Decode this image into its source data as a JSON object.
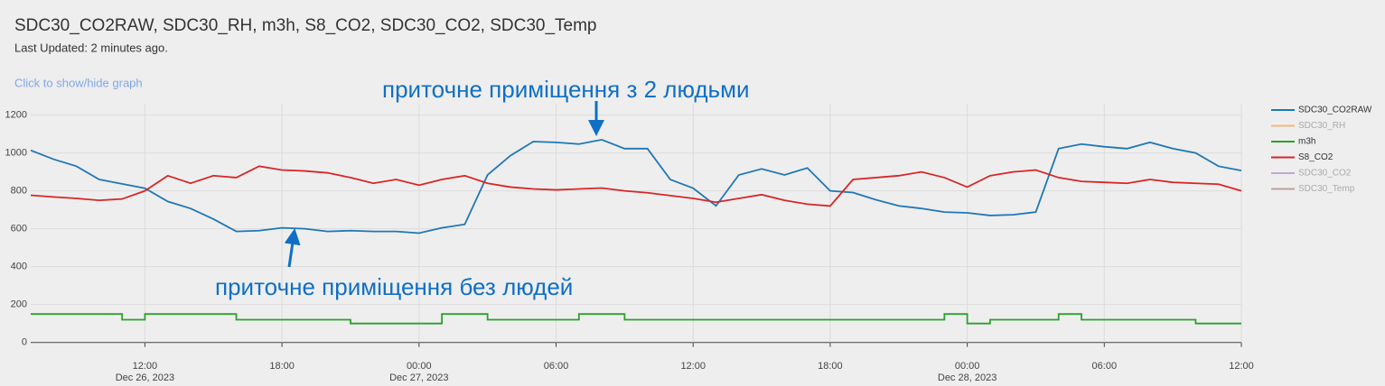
{
  "header": {
    "title": "SDC30_CO2RAW, SDC30_RH, m3h, S8_CO2, SDC30_CO2, SDC30_Temp",
    "updated": "Last Updated: 2 minutes ago.",
    "toggle": "Click to show/hide graph"
  },
  "chart_data": {
    "type": "line",
    "annotations": [
      "приточне приміщення з 2 людьми",
      "приточне приміщення без людей"
    ],
    "x": [
      "2023-12-26 07:00",
      "2023-12-26 08:00",
      "2023-12-26 09:00",
      "2023-12-26 10:00",
      "2023-12-26 11:00",
      "2023-12-26 12:00",
      "2023-12-26 13:00",
      "2023-12-26 14:00",
      "2023-12-26 15:00",
      "2023-12-26 16:00",
      "2023-12-26 17:00",
      "2023-12-26 18:00",
      "2023-12-26 19:00",
      "2023-12-26 20:00",
      "2023-12-26 21:00",
      "2023-12-26 22:00",
      "2023-12-26 23:00",
      "2023-12-27 00:00",
      "2023-12-27 01:00",
      "2023-12-27 02:00",
      "2023-12-27 03:00",
      "2023-12-27 04:00",
      "2023-12-27 05:00",
      "2023-12-27 06:00",
      "2023-12-27 07:00",
      "2023-12-27 08:00",
      "2023-12-27 09:00",
      "2023-12-27 10:00",
      "2023-12-27 11:00",
      "2023-12-27 12:00",
      "2023-12-27 13:00",
      "2023-12-27 14:00",
      "2023-12-27 15:00",
      "2023-12-27 16:00",
      "2023-12-27 17:00",
      "2023-12-27 18:00",
      "2023-12-27 19:00",
      "2023-12-27 20:00",
      "2023-12-27 21:00",
      "2023-12-27 22:00",
      "2023-12-27 23:00",
      "2023-12-28 00:00",
      "2023-12-28 01:00",
      "2023-12-28 02:00",
      "2023-12-28 03:00",
      "2023-12-28 04:00",
      "2023-12-28 05:00",
      "2023-12-28 06:00",
      "2023-12-28 07:00",
      "2023-12-28 08:00",
      "2023-12-28 09:00",
      "2023-12-28 10:00",
      "2023-12-28 11:00",
      "2023-12-28 12:00"
    ],
    "series": [
      {
        "name": "SDC30_CO2RAW",
        "color": "#1f77b4",
        "visible": true,
        "values": [
          1014,
          967,
          930,
          860,
          837,
          814,
          744,
          707,
          651,
          586,
          590,
          605,
          600,
          586,
          590,
          586,
          586,
          577,
          605,
          623,
          884,
          986,
          1060,
          1056,
          1047,
          1070,
          1023,
          1023,
          860,
          814,
          721,
          884,
          916,
          884,
          921,
          800,
          791,
          753,
          721,
          707,
          688,
          684,
          670,
          674,
          688,
          1023,
          1047,
          1033,
          1023,
          1056,
          1023,
          1000,
          930,
          907
        ]
      },
      {
        "name": "SDC30_RH",
        "color": "#ff7f0e",
        "visible": false
      },
      {
        "name": "m3h",
        "color": "#2ca02c",
        "visible": true,
        "step": true,
        "values": [
          150,
          150,
          150,
          150,
          120,
          150,
          150,
          150,
          150,
          120,
          120,
          120,
          120,
          120,
          100,
          100,
          100,
          100,
          150,
          150,
          120,
          120,
          120,
          120,
          150,
          150,
          120,
          120,
          120,
          120,
          120,
          120,
          120,
          120,
          120,
          120,
          120,
          120,
          120,
          120,
          150,
          100,
          120,
          120,
          120,
          150,
          120,
          120,
          120,
          120,
          120,
          100,
          100,
          100
        ]
      },
      {
        "name": "S8_CO2",
        "color": "#d62728",
        "visible": true,
        "values": [
          777,
          768,
          760,
          750,
          757,
          800,
          880,
          840,
          880,
          870,
          930,
          910,
          905,
          895,
          870,
          840,
          860,
          830,
          860,
          880,
          840,
          820,
          810,
          805,
          810,
          815,
          800,
          790,
          775,
          760,
          740,
          760,
          780,
          750,
          730,
          720,
          860,
          870,
          880,
          900,
          870,
          820,
          880,
          900,
          910,
          870,
          850,
          845,
          840,
          860,
          845,
          840,
          835,
          800
        ]
      },
      {
        "name": "SDC30_CO2",
        "color": "#9467bd",
        "visible": false
      },
      {
        "name": "SDC30_Temp",
        "color": "#8c564b",
        "visible": false
      }
    ],
    "xlim": [
      "2023-12-26 07:00",
      "2023-12-28 12:00"
    ],
    "xticks": [
      {
        "value": "2023-12-26 12:00",
        "label": "12:00",
        "sublabel": "Dec 26, 2023"
      },
      {
        "value": "2023-12-26 18:00",
        "label": "18:00"
      },
      {
        "value": "2023-12-27 00:00",
        "label": "00:00",
        "sublabel": "Dec 27, 2023"
      },
      {
        "value": "2023-12-27 06:00",
        "label": "06:00"
      },
      {
        "value": "2023-12-27 12:00",
        "label": "12:00"
      },
      {
        "value": "2023-12-27 18:00",
        "label": "18:00"
      },
      {
        "value": "2023-12-28 00:00",
        "label": "00:00",
        "sublabel": "Dec 28, 2023"
      },
      {
        "value": "2023-12-28 06:00",
        "label": "06:00"
      },
      {
        "value": "2023-12-28 12:00",
        "label": "12:00"
      }
    ],
    "ylim": [
      -30,
      1260
    ],
    "yticks": [
      0,
      200,
      400,
      600,
      800,
      1000,
      1200
    ],
    "grid": true
  }
}
